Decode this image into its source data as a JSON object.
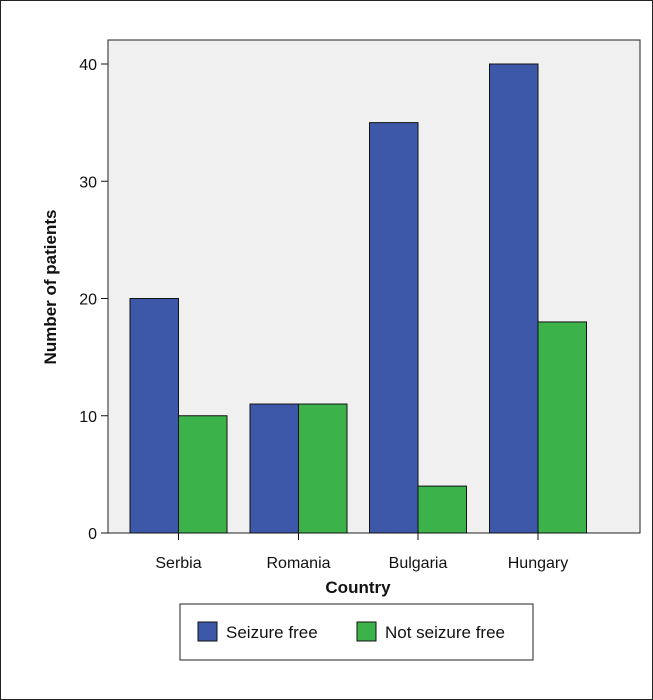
{
  "chart_data": {
    "type": "bar",
    "categories": [
      "Serbia",
      "Romania",
      "Bulgaria",
      "Hungary"
    ],
    "series": [
      {
        "name": "Seizure free",
        "values": [
          20,
          11,
          35,
          40
        ],
        "color": "#3d58a8"
      },
      {
        "name": "Not seizure free",
        "values": [
          10,
          11,
          4,
          18
        ],
        "color": "#3bb34a"
      }
    ],
    "xlabel": "Country",
    "ylabel": "Number of patients",
    "ylim": [
      0,
      40
    ],
    "yticks": [
      0,
      10,
      20,
      30,
      40
    ],
    "plot_background": "#f0f0f0",
    "grid": false,
    "legend_position": "bottom"
  }
}
